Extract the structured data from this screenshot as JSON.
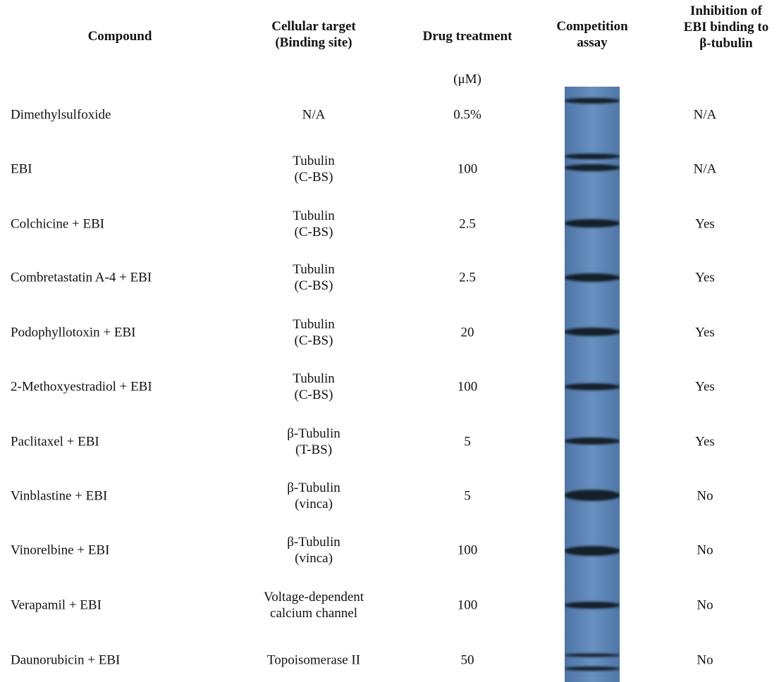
{
  "headers": {
    "compound": "Compound",
    "target_line1": "Cellular target",
    "target_line2": "(Binding site)",
    "dose": "Drug treatment",
    "assay_line1": "Competition",
    "assay_line2": "assay",
    "inhib_line1": "Inhibition of",
    "inhib_line2": "EBI binding to",
    "inhib_line3": "β-tubulin"
  },
  "dose_unit": "(μM)",
  "rows": [
    {
      "compound": "Dimethylsulfoxide",
      "target1": "N/A",
      "target2": "",
      "dose": "0.5%",
      "inhibition": "N/A"
    },
    {
      "compound": "EBI",
      "target1": "Tubulin",
      "target2": "(C-BS)",
      "dose": "100",
      "inhibition": "N/A"
    },
    {
      "compound": "Colchicine + EBI",
      "target1": "Tubulin",
      "target2": "(C-BS)",
      "dose": "2.5",
      "inhibition": "Yes"
    },
    {
      "compound": "Combretastatin A-4 + EBI",
      "target1": "Tubulin",
      "target2": "(C-BS)",
      "dose": "2.5",
      "inhibition": "Yes"
    },
    {
      "compound": "Podophyllotoxin + EBI",
      "target1": "Tubulin",
      "target2": "(C-BS)",
      "dose": "20",
      "inhibition": "Yes"
    },
    {
      "compound": "2-Methoxyestradiol + EBI",
      "target1": "Tubulin",
      "target2": "(C-BS)",
      "dose": "100",
      "inhibition": "Yes"
    },
    {
      "compound": "Paclitaxel + EBI",
      "target1": "β-Tubulin",
      "target2": "(T-BS)",
      "dose": "5",
      "inhibition": "Yes"
    },
    {
      "compound": "Vinblastine + EBI",
      "target1": "β-Tubulin",
      "target2": "(vinca)",
      "dose": "5",
      "inhibition": "No"
    },
    {
      "compound": "Vinorelbine + EBI",
      "target1": "β-Tubulin",
      "target2": "(vinca)",
      "dose": "100",
      "inhibition": "No"
    },
    {
      "compound": "Verapamil + EBI",
      "target1": "Voltage-dependent",
      "target2": "calcium channel",
      "dose": "100",
      "inhibition": "No"
    },
    {
      "compound": "Daunorubicin + EBI",
      "target1": "Topoisomerase II",
      "target2": "",
      "dose": "50",
      "inhibition": "No"
    }
  ],
  "colors": {
    "blot_background": "#5f87b8",
    "blot_band": "#101820"
  }
}
